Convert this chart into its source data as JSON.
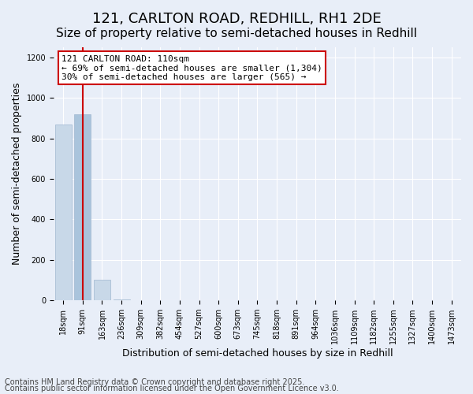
{
  "title": "121, CARLTON ROAD, REDHILL, RH1 2DE",
  "subtitle": "Size of property relative to semi-detached houses in Redhill",
  "xlabel": "Distribution of semi-detached houses by size in Redhill",
  "ylabel": "Number of semi-detached properties",
  "annotation_line1": "121 CARLTON ROAD: 110sqm",
  "annotation_line2": "← 69% of semi-detached houses are smaller (1,304)",
  "annotation_line3": "30% of semi-detached houses are larger (565) →",
  "footer_line1": "Contains HM Land Registry data © Crown copyright and database right 2025.",
  "footer_line2": "Contains public sector information licensed under the Open Government Licence v3.0.",
  "bins": [
    "18sqm",
    "91sqm",
    "163sqm",
    "236sqm",
    "309sqm",
    "382sqm",
    "454sqm",
    "527sqm",
    "600sqm",
    "673sqm",
    "745sqm",
    "818sqm",
    "891sqm",
    "964sqm",
    "1036sqm",
    "1109sqm",
    "1182sqm",
    "1255sqm",
    "1327sqm",
    "1400sqm",
    "1473sqm"
  ],
  "values": [
    870,
    920,
    100,
    5,
    2,
    1,
    1,
    1,
    0,
    0,
    0,
    0,
    0,
    0,
    0,
    0,
    0,
    0,
    0,
    0,
    0
  ],
  "bar_color": "#c8d8e8",
  "bar_edge_color": "#a0b8d0",
  "highlight_bar_index": 1,
  "highlight_bar_color": "#aac4dc",
  "red_line_index": 1,
  "red_line_color": "#cc0000",
  "background_color": "#e8eef8",
  "plot_background_color": "#e8eef8",
  "ylim": [
    0,
    1250
  ],
  "yticks": [
    0,
    200,
    400,
    600,
    800,
    1000,
    1200
  ],
  "annotation_box_color": "#ffffff",
  "annotation_border_color": "#cc0000",
  "title_fontsize": 13,
  "subtitle_fontsize": 11,
  "axis_label_fontsize": 9,
  "tick_fontsize": 7,
  "annotation_fontsize": 8,
  "footer_fontsize": 7
}
